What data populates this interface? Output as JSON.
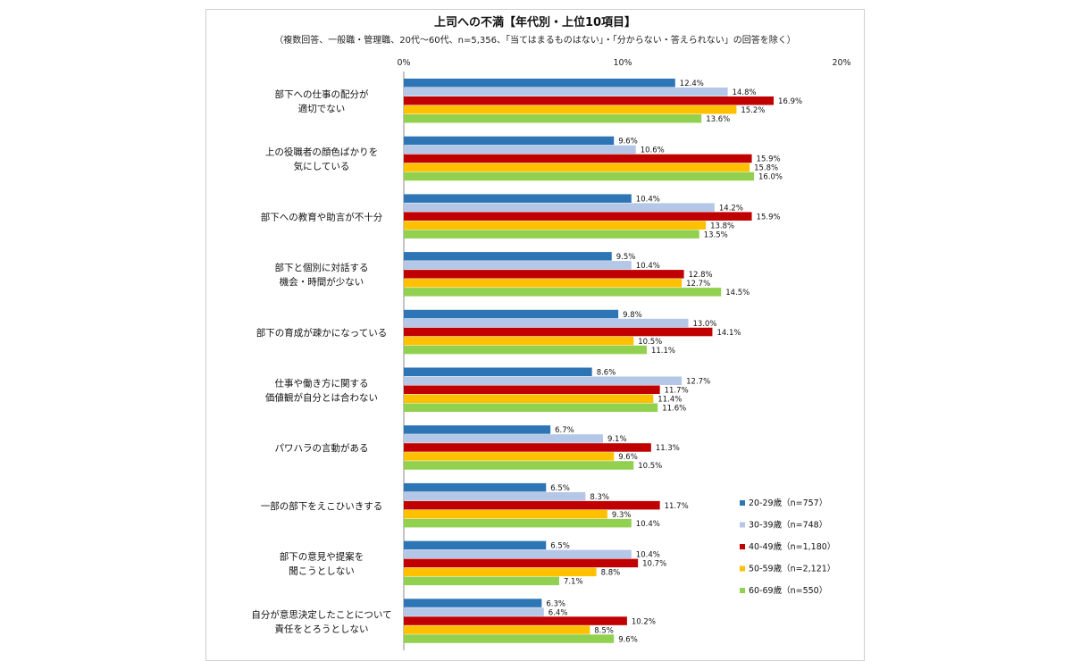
{
  "chart_data": {
    "type": "bar",
    "orientation": "horizontal",
    "title": "上司への不満【年代別・上位10項目】",
    "subtitle": "（複数回答、一般職・管理職、20代～60代、n=5,356、「当てはまるものはない」・「分からない・答えられない」の回答を除く）",
    "xlim": [
      0,
      20
    ],
    "xticks": [
      "0%",
      "10%",
      "20%"
    ],
    "grid": false,
    "legend_position": "bottom-right",
    "categories": [
      [
        "部下への仕事の配分が",
        "適切でない"
      ],
      [
        "上の役職者の顔色ばかりを",
        "気にしている"
      ],
      [
        "部下への教育や助言が不十分"
      ],
      [
        "部下と個別に対話する",
        "機会・時間が少ない"
      ],
      [
        "部下の育成が疎かになっている"
      ],
      [
        "仕事や働き方に関する",
        "価値観が自分とは合わない"
      ],
      [
        "パワハラの言動がある"
      ],
      [
        "一部の部下をえこひいきする"
      ],
      [
        "部下の意見や提案を",
        "聞こうとしない"
      ],
      [
        "自分が意思決定したことについて",
        "責任をとろうとしない"
      ]
    ],
    "series": [
      {
        "name": "20-29歳（n=757）",
        "color": "#2e75b6",
        "values": [
          12.4,
          9.6,
          10.4,
          9.5,
          9.8,
          8.6,
          6.7,
          6.5,
          6.5,
          6.3
        ]
      },
      {
        "name": "30-39歳（n=748）",
        "color": "#b4c7e7",
        "values": [
          14.8,
          10.6,
          14.2,
          10.4,
          13.0,
          12.7,
          9.1,
          8.3,
          10.4,
          6.4
        ]
      },
      {
        "name": "40-49歳（n=1,180）",
        "color": "#c00000",
        "values": [
          16.9,
          15.9,
          15.9,
          12.8,
          14.1,
          11.7,
          11.3,
          11.7,
          10.7,
          10.2
        ]
      },
      {
        "name": "50-59歳（n=2,121）",
        "color": "#ffc000",
        "values": [
          15.2,
          15.8,
          13.8,
          12.7,
          10.5,
          11.4,
          9.6,
          9.3,
          8.8,
          8.5
        ]
      },
      {
        "name": "60-69歳（n=550）",
        "color": "#92d050",
        "values": [
          13.6,
          16.0,
          13.5,
          14.5,
          11.1,
          11.6,
          10.5,
          10.4,
          7.1,
          9.6
        ]
      }
    ]
  }
}
